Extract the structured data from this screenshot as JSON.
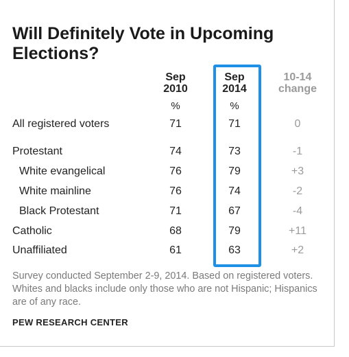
{
  "title": "Will Definitely Vote in Upcoming Elections?",
  "columns": [
    {
      "line1": "Sep",
      "line2": "2010",
      "unit": "%"
    },
    {
      "line1": "Sep",
      "line2": "2014",
      "unit": "%"
    },
    {
      "line1": "10-14",
      "line2": "change",
      "unit": ""
    }
  ],
  "note": "Survey conducted September 2-9, 2014. Based on registered voters. Whites and blacks include only those who are not Hispanic; Hispanics are of any race.",
  "source": "PEW RESEARCH CENTER",
  "colors": {
    "highlight_border": "#1e90e6",
    "change_text": "#9a9a9a"
  },
  "chart_data": {
    "type": "table",
    "highlighted_column": "Sep 2014",
    "rows": [
      {
        "label": "All registered voters",
        "sub": false,
        "sep2010": "71",
        "sep2014": "71",
        "change": "0"
      },
      {
        "label": "Protestant",
        "sub": false,
        "sep2010": "74",
        "sep2014": "73",
        "change": "-1"
      },
      {
        "label": "White evangelical",
        "sub": true,
        "sep2010": "76",
        "sep2014": "79",
        "change": "+3"
      },
      {
        "label": "White mainline",
        "sub": true,
        "sep2010": "76",
        "sep2014": "74",
        "change": "-2"
      },
      {
        "label": "Black Protestant",
        "sub": true,
        "sep2010": "71",
        "sep2014": "67",
        "change": "-4"
      },
      {
        "label": "Catholic",
        "sub": false,
        "sep2010": "68",
        "sep2014": "79",
        "change": "+11"
      },
      {
        "label": "Unaffiliated",
        "sub": false,
        "sep2010": "61",
        "sep2014": "63",
        "change": "+2"
      }
    ]
  }
}
